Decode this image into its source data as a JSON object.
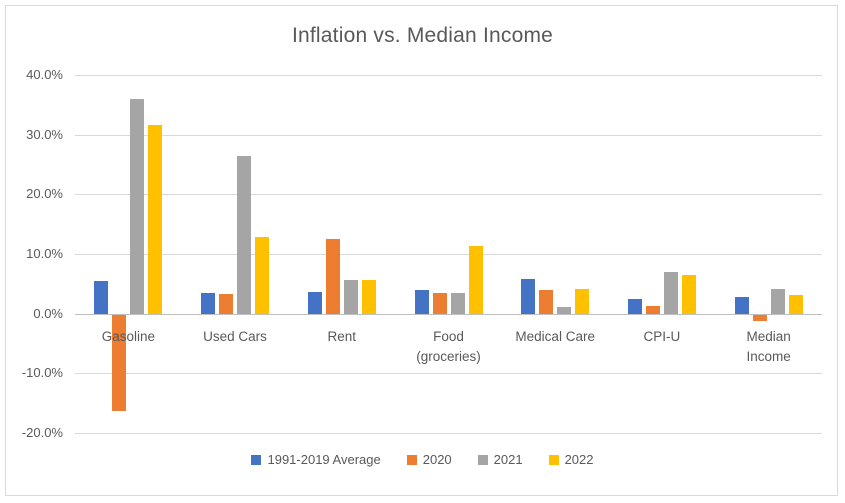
{
  "window": {
    "background": "#FFFFFF",
    "border_color": "#D9D9D9"
  },
  "chart_data": {
    "type": "bar",
    "title": "Inflation vs. Median Income",
    "categories": [
      "Gasoline",
      "Used Cars",
      "Rent",
      "Food (groceries)",
      "Medical Care",
      "CPI-U",
      "Median Income"
    ],
    "category_display_lines": [
      [
        "Gasoline"
      ],
      [
        "Used Cars"
      ],
      [
        "Rent"
      ],
      [
        "Food",
        "(groceries)"
      ],
      [
        "Medical Care"
      ],
      [
        "CPI-U"
      ],
      [
        "Median",
        "Income"
      ]
    ],
    "series": [
      {
        "name": "1991-2019 Average",
        "color": "#4472C4",
        "values": [
          5.5,
          3.4,
          3.7,
          3.9,
          5.8,
          2.4,
          2.8
        ]
      },
      {
        "name": "2020",
        "color": "#ED7D31",
        "values": [
          -16.2,
          3.3,
          12.5,
          3.5,
          4.0,
          1.3,
          -1.0
        ]
      },
      {
        "name": "2021",
        "color": "#A5A5A5",
        "values": [
          36.0,
          26.4,
          5.7,
          3.5,
          1.2,
          7.0,
          4.1
        ]
      },
      {
        "name": "2022",
        "color": "#FFC000",
        "values": [
          31.6,
          12.8,
          5.6,
          11.4,
          4.1,
          6.5,
          3.2
        ]
      }
    ],
    "y_axis": {
      "tick_labels": [
        "40.0%",
        "30.0%",
        "20.0%",
        "10.0%",
        "0.0%",
        "-10.0%",
        "-20.0%"
      ],
      "max": 40,
      "min": -20,
      "unit": "%"
    },
    "grid": true,
    "legend_position": "bottom",
    "colors": {
      "title_text": "#595959",
      "axis_text": "#595959",
      "gridline": "#D9D9D9",
      "axis_line": "#BFBFBF"
    }
  }
}
